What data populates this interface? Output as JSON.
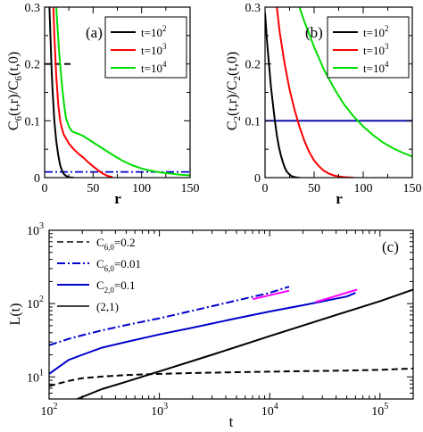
{
  "chart_data": [
    {
      "panel_label": "(a)",
      "type": "line",
      "ylabel": "C6(t,r)/C6(t,0)",
      "ylabel_parts": {
        "c": "C",
        "sub1": "6",
        "mid": "(t,r)/C",
        "sub2": "6",
        "end": "(t,0)"
      },
      "xlabel": "r",
      "xlim": [
        0,
        150
      ],
      "ylim": [
        0,
        0.3
      ],
      "xticks": [
        0,
        50,
        100,
        150
      ],
      "yticks": [
        0,
        0.1,
        0.2,
        0.3
      ],
      "xtick_labels": [
        "0",
        "50",
        "100",
        "150"
      ],
      "ytick_labels": [
        "0",
        "0.1",
        "0.2",
        "0.3"
      ],
      "legend": [
        "t=10^2",
        "t=10^3",
        "t=10^4"
      ],
      "legend_placement": "top-right",
      "series": [
        {
          "name": "t=10^2",
          "color": "#000000",
          "x": [
            5,
            6,
            7,
            8,
            9,
            10,
            12,
            14,
            16,
            18,
            20,
            23,
            26,
            30
          ],
          "y": [
            0.3,
            0.25,
            0.2,
            0.16,
            0.13,
            0.1,
            0.065,
            0.04,
            0.022,
            0.012,
            0.006,
            0.002,
            0.0005,
            0
          ]
        },
        {
          "name": "t=10^3",
          "color": "#ff0000",
          "x": [
            9,
            10,
            12,
            14,
            16,
            18,
            20,
            25,
            30,
            35,
            40,
            45,
            50,
            55,
            60,
            65,
            70
          ],
          "y": [
            0.3,
            0.25,
            0.18,
            0.13,
            0.1,
            0.085,
            0.075,
            0.06,
            0.05,
            0.042,
            0.035,
            0.027,
            0.02,
            0.013,
            0.007,
            0.003,
            0.001
          ]
        },
        {
          "name": "t=10^4",
          "color": "#00dd00",
          "x": [
            12,
            15,
            18,
            20,
            22,
            25,
            28,
            30,
            35,
            40,
            50,
            60,
            70,
            80,
            90,
            100,
            110,
            120,
            130,
            140,
            150
          ],
          "y": [
            0.3,
            0.22,
            0.16,
            0.13,
            0.105,
            0.09,
            0.082,
            0.08,
            0.077,
            0.073,
            0.062,
            0.051,
            0.04,
            0.03,
            0.022,
            0.016,
            0.012,
            0.009,
            0.007,
            0.005,
            0.004
          ]
        }
      ],
      "reference_lines": [
        {
          "y": 0.2,
          "x_range": [
            0,
            28
          ],
          "style": "dashed",
          "color": "#000000"
        },
        {
          "y": 0.01,
          "x_range": [
            0,
            150
          ],
          "style": "dash-dot",
          "color": "#0000cc"
        }
      ]
    },
    {
      "panel_label": "(b)",
      "type": "line",
      "ylabel": "C2(t,r)/C2(t,0)",
      "ylabel_parts": {
        "c": "C",
        "sub1": "2",
        "mid": "(t,r)/C",
        "sub2": "2",
        "end": "(t,0)"
      },
      "xlabel": "r",
      "xlim": [
        0,
        150
      ],
      "ylim": [
        0,
        0.3
      ],
      "xticks": [
        0,
        50,
        100,
        150
      ],
      "yticks": [
        0,
        0.1,
        0.2,
        0.3
      ],
      "xtick_labels": [
        "0",
        "50",
        "100",
        "150"
      ],
      "ytick_labels": [
        "0",
        "0.1",
        "0.2",
        "0.3"
      ],
      "legend": [
        "t=10^2",
        "t=10^3",
        "t=10^4"
      ],
      "legend_placement": "top-right",
      "series": [
        {
          "name": "t=10^2",
          "color": "#000000",
          "x": [
            0,
            2,
            4,
            6,
            8,
            10,
            12,
            14,
            16,
            18,
            20,
            22,
            24,
            26,
            28,
            30,
            32,
            35
          ],
          "y": [
            0.29,
            0.24,
            0.2,
            0.16,
            0.13,
            0.1,
            0.075,
            0.055,
            0.04,
            0.028,
            0.018,
            0.011,
            0.007,
            0.004,
            0.002,
            0.001,
            0.0005,
            0
          ]
        },
        {
          "name": "t=10^3",
          "color": "#ff0000",
          "x": [
            12,
            15,
            20,
            25,
            30,
            35,
            40,
            45,
            50,
            55,
            60,
            65,
            70,
            75,
            80,
            85,
            90
          ],
          "y": [
            0.3,
            0.255,
            0.2,
            0.155,
            0.12,
            0.09,
            0.065,
            0.045,
            0.03,
            0.02,
            0.012,
            0.007,
            0.004,
            0.002,
            0.001,
            0.0005,
            0
          ]
        },
        {
          "name": "t=10^4",
          "color": "#00dd00",
          "x": [
            35,
            40,
            50,
            60,
            70,
            80,
            90,
            100,
            110,
            120,
            130,
            140,
            150
          ],
          "y": [
            0.3,
            0.275,
            0.23,
            0.19,
            0.158,
            0.13,
            0.108,
            0.09,
            0.075,
            0.062,
            0.052,
            0.044,
            0.037
          ]
        }
      ],
      "reference_lines": [
        {
          "y": 0.1,
          "x_range": [
            0,
            150
          ],
          "style": "solid",
          "color": "#0000aa"
        }
      ]
    },
    {
      "panel_label": "(c)",
      "type": "line",
      "xlabel": "t",
      "ylabel": "L(t)",
      "xscale": "log",
      "yscale": "log",
      "xlim": [
        100,
        200000
      ],
      "ylim": [
        5,
        1000
      ],
      "xticks": [
        100,
        1000,
        10000,
        100000
      ],
      "yticks": [
        10,
        100,
        1000
      ],
      "xtick_labels": [
        {
          "base": "10",
          "exp": "2"
        },
        {
          "base": "10",
          "exp": "3"
        },
        {
          "base": "10",
          "exp": "4"
        },
        {
          "base": "10",
          "exp": "5"
        }
      ],
      "ytick_labels": [
        {
          "base": "10",
          "exp": "1"
        },
        {
          "base": "10",
          "exp": "2"
        },
        {
          "base": "10",
          "exp": "3"
        }
      ],
      "legend_placement": "top-left",
      "legend": [
        {
          "c": "C",
          "sub": "6,0",
          "val": "=0.2"
        },
        {
          "c": "C",
          "sub": "6,0",
          "val": "=0.01"
        },
        {
          "c": "C",
          "sub": "2,0",
          "val": "=0.1"
        },
        {
          "text": "(2,1)"
        }
      ],
      "series": [
        {
          "name": "C6,0=0.2",
          "color": "#000000",
          "style": "dashed",
          "x": [
            100,
            150,
            200,
            300,
            500,
            1000,
            2000,
            5000,
            10000,
            20000,
            50000,
            100000,
            200000
          ],
          "y": [
            7.5,
            8.8,
            9.6,
            10.1,
            10.6,
            11.0,
            11.3,
            11.6,
            11.8,
            12.0,
            12.2,
            12.5,
            13.0
          ]
        },
        {
          "name": "C6,0=0.01",
          "color": "#0000cc",
          "style": "dash-dot",
          "x": [
            100,
            150,
            200,
            300,
            500,
            1000,
            2000,
            5000,
            10000,
            15000
          ],
          "y": [
            27,
            33,
            37,
            43,
            51,
            63,
            80,
            110,
            140,
            170
          ]
        },
        {
          "name": "C2,0=0.1",
          "color": "#0000cc",
          "style": "solid",
          "x": [
            100,
            150,
            200,
            300,
            500,
            1000,
            2000,
            5000,
            10000,
            20000,
            50000,
            60000
          ],
          "y": [
            11,
            17,
            20,
            25,
            30,
            38,
            47,
            63,
            78,
            95,
            125,
            140
          ]
        },
        {
          "name": "(2,1)",
          "color": "#000000",
          "style": "solid",
          "x": [
            180,
            300,
            500,
            1000,
            3000,
            10000,
            30000,
            100000,
            200000
          ],
          "y": [
            5,
            6.8,
            8.6,
            11.9,
            20,
            36,
            61,
            108,
            155
          ]
        },
        {
          "name": "",
          "color": "#ff00ff",
          "style": "solid",
          "x": [
            7000,
            15000
          ],
          "y": [
            115,
            150
          ]
        },
        {
          "name": "",
          "color": "#ff00ff",
          "style": "solid",
          "x": [
            26000,
            62000
          ],
          "y": [
            105,
            155
          ]
        }
      ]
    }
  ]
}
